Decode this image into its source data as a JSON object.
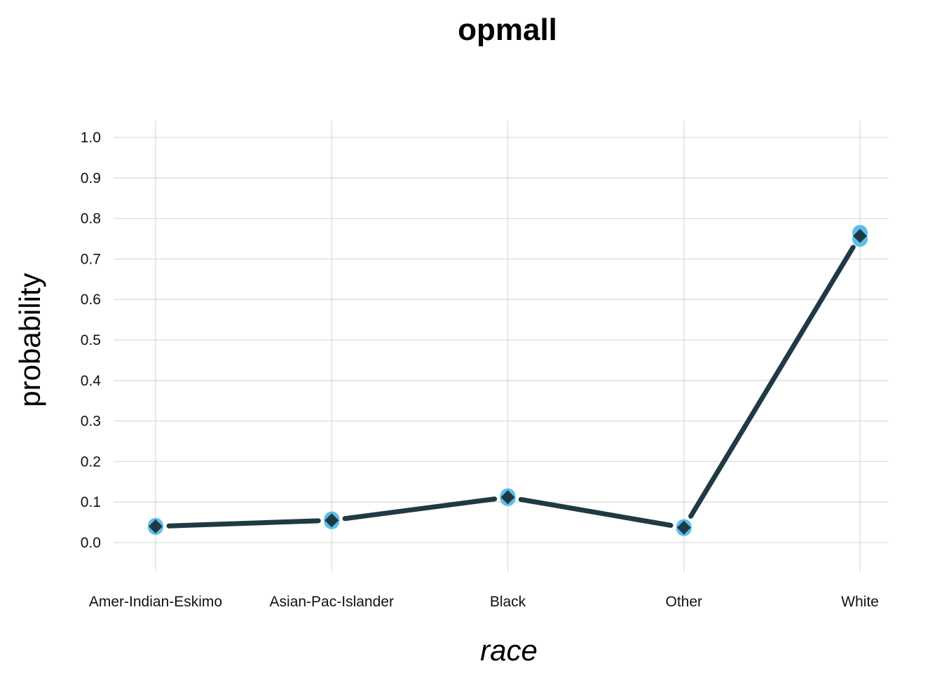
{
  "chart_data": {
    "type": "line",
    "title": "opmall",
    "xlabel": "race",
    "ylabel": "probability",
    "categories": [
      "Amer-Indian-Eskimo",
      "Asian-Pac-Islander",
      "Black",
      "Other",
      "White"
    ],
    "series": [
      {
        "values": [
          0.04,
          0.055,
          0.112,
          0.037,
          0.757
        ],
        "interval_points": [
          [
            0.038,
            0.042
          ],
          [
            0.052,
            0.058
          ],
          [
            0.109,
            0.115
          ],
          [
            0.035,
            0.039
          ],
          [
            0.749,
            0.765
          ]
        ]
      }
    ],
    "ylim": [
      -0.07,
      1.04
    ],
    "yticks": [
      "0.0",
      "0.1",
      "0.2",
      "0.3",
      "0.4",
      "0.5",
      "0.6",
      "0.7",
      "0.8",
      "0.9",
      "1.0"
    ],
    "ytick_values": [
      0.0,
      0.1,
      0.2,
      0.3,
      0.4,
      0.5,
      0.6,
      0.7,
      0.8,
      0.9,
      1.0
    ],
    "grid": true,
    "colors": {
      "line": "#1f3a44",
      "point_halo": "#5bc0e8",
      "marker": "#1f3a44",
      "grid": "#dcdcdc"
    }
  }
}
